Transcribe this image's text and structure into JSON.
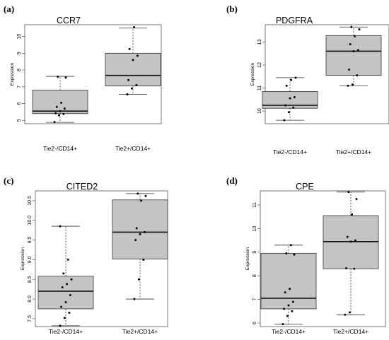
{
  "chart_data": [
    {
      "panel": "(a)",
      "type": "box",
      "title": "CCR7",
      "ylabel": "Expression",
      "categories": [
        "Tie2-/CD14+",
        "Tie2+/CD14+"
      ],
      "ylim": [
        4.8,
        10.7
      ],
      "yticks": [
        5,
        6,
        7,
        8,
        9,
        10
      ],
      "boxes": [
        {
          "q1": 5.4,
          "median": 5.55,
          "q3": 6.8,
          "whisker_low": 4.88,
          "whisker_high": 7.62,
          "points": [
            4.9,
            5.3,
            5.38,
            5.42,
            5.55,
            5.7,
            5.8,
            6.05,
            7.55,
            7.6
          ]
        },
        {
          "q1": 7.05,
          "median": 7.68,
          "q3": 9.0,
          "whisker_low": 6.55,
          "whisker_high": 10.5,
          "points": [
            6.55,
            6.9,
            7.1,
            7.4,
            8.6,
            8.85,
            9.25,
            10.55
          ]
        }
      ]
    },
    {
      "panel": "(b)",
      "type": "box",
      "title": "PDGFRA",
      "ylabel": "Expression",
      "categories": [
        "Tie2-/CD14+",
        "Tie2+/CD14+"
      ],
      "ylim": [
        9.45,
        13.75
      ],
      "yticks": [
        10,
        11,
        12,
        13
      ],
      "boxes": [
        {
          "q1": 10.12,
          "median": 10.25,
          "q3": 10.85,
          "whisker_low": 9.6,
          "whisker_high": 11.45,
          "points": [
            9.6,
            9.95,
            10.15,
            10.25,
            10.55,
            10.6,
            11.1,
            11.35,
            11.45
          ]
        },
        {
          "q1": 11.55,
          "median": 12.6,
          "q3": 13.28,
          "whisker_low": 11.1,
          "whisker_high": 13.65,
          "points": [
            11.1,
            11.15,
            11.55,
            11.8,
            12.6,
            12.65,
            12.9,
            13.25,
            13.55,
            13.65
          ]
        }
      ]
    },
    {
      "panel": "(c)",
      "type": "box",
      "title": "CITED2",
      "ylabel": "Expression",
      "categories": [
        "Tie2-/CD14+",
        "Tie2+/CD14+"
      ],
      "ylim": [
        7.3,
        10.75
      ],
      "yticks": [
        7.5,
        8.0,
        8.5,
        9.0,
        9.5,
        10.0,
        10.5
      ],
      "boxes": [
        {
          "q1": 7.75,
          "median": 8.2,
          "q3": 8.58,
          "whisker_low": 7.32,
          "whisker_high": 9.85,
          "points": [
            7.32,
            7.52,
            7.65,
            7.8,
            7.92,
            8.1,
            8.3,
            8.38,
            8.5,
            8.65,
            9.0,
            9.85
          ]
        },
        {
          "q1": 9.02,
          "median": 9.7,
          "q3": 10.52,
          "whisker_low": 8.0,
          "whisker_high": 10.68,
          "points": [
            8.0,
            8.5,
            9.0,
            9.5,
            9.65,
            9.7,
            9.8,
            10.5,
            10.62,
            10.68
          ]
        }
      ]
    },
    {
      "panel": "(d)",
      "type": "box",
      "title": "CPE",
      "ylabel": "Expression",
      "categories": [
        "Tie2-/CD14+",
        "Tie2+/CD14+"
      ],
      "ylim": [
        5.85,
        11.6
      ],
      "yticks": [
        6,
        7,
        8,
        9,
        10,
        11
      ],
      "boxes": [
        {
          "q1": 6.6,
          "median": 7.05,
          "q3": 8.95,
          "whisker_low": 5.95,
          "whisker_high": 9.3,
          "points": [
            5.95,
            6.3,
            6.5,
            6.6,
            6.75,
            6.9,
            7.3,
            7.45,
            8.9,
            8.95,
            9.3
          ]
        },
        {
          "q1": 8.3,
          "median": 9.45,
          "q3": 10.55,
          "whisker_low": 6.35,
          "whisker_high": 11.55,
          "points": [
            6.35,
            6.45,
            8.3,
            8.32,
            9.45,
            9.5,
            9.65,
            10.6,
            11.25,
            11.55
          ]
        }
      ]
    }
  ]
}
